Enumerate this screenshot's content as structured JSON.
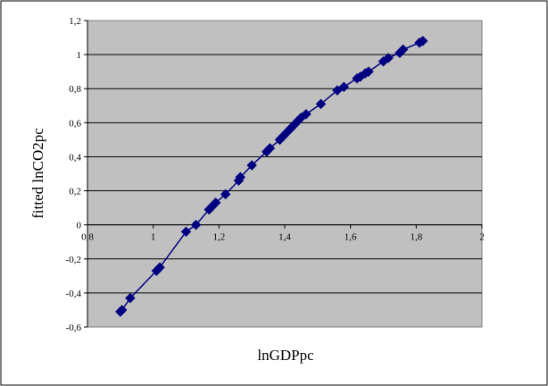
{
  "chart_data": {
    "type": "scatter",
    "title": "",
    "xlabel": "lnGDPpc",
    "ylabel": "fitted lnCO2pc",
    "xlim": [
      0.8,
      2
    ],
    "ylim": [
      -0.6,
      1.2
    ],
    "x_ticks": [
      0.8,
      1,
      1.2,
      1.4,
      1.6,
      1.8,
      2
    ],
    "y_ticks": [
      -0.6,
      -0.4,
      -0.2,
      0,
      0.2,
      0.4,
      0.6,
      0.8,
      1,
      1.2
    ],
    "x_tick_labels": [
      "0,8",
      "1",
      "1,2",
      "1,4",
      "1,6",
      "1,8",
      "2"
    ],
    "y_tick_labels": [
      "-0,6",
      "-0,4",
      "-0,2",
      "0",
      "0,2",
      "0,4",
      "0,6",
      "0,8",
      "1",
      "1,2"
    ],
    "grid": "horizontal",
    "legend": "none",
    "colors": {
      "plot_background": "#c0c0c0",
      "series": "#000080",
      "gridline": "#000000"
    },
    "series": [
      {
        "x": [
          0.9,
          0.905,
          0.93,
          1.01,
          1.02,
          1.1,
          1.13,
          1.17,
          1.18,
          1.19,
          1.22,
          1.26,
          1.265,
          1.3,
          1.345,
          1.355,
          1.385,
          1.395,
          1.405,
          1.415,
          1.42,
          1.43,
          1.44,
          1.45,
          1.465,
          1.51,
          1.56,
          1.58,
          1.62,
          1.63,
          1.645,
          1.655,
          1.7,
          1.715,
          1.75,
          1.76,
          1.81,
          1.82
        ],
        "y": [
          -0.51,
          -0.5,
          -0.43,
          -0.27,
          -0.25,
          -0.04,
          0.0,
          0.09,
          0.11,
          0.13,
          0.18,
          0.26,
          0.28,
          0.35,
          0.43,
          0.45,
          0.5,
          0.52,
          0.54,
          0.56,
          0.57,
          0.59,
          0.61,
          0.63,
          0.65,
          0.71,
          0.79,
          0.81,
          0.86,
          0.87,
          0.89,
          0.9,
          0.96,
          0.98,
          1.01,
          1.03,
          1.07,
          1.08
        ]
      }
    ]
  }
}
